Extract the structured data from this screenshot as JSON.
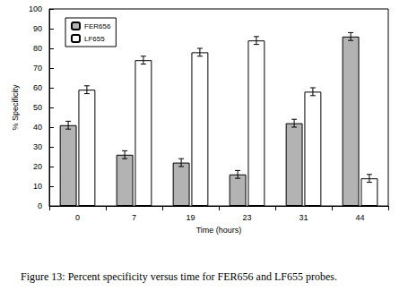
{
  "chart_data": {
    "type": "bar",
    "title": "Figure 13: Percent specificity versus time for FER656 and LF655 probes.",
    "x_label": "Time (hours)",
    "y_label": "% Specificity",
    "categories": [
      "0",
      "7",
      "19",
      "23",
      "31",
      "44"
    ],
    "series": [
      {
        "name": "FER656",
        "color": "#b3b3b3",
        "values": [
          41,
          26,
          22,
          16,
          42,
          86
        ],
        "errors": [
          2,
          2,
          2,
          2,
          2,
          2
        ]
      },
      {
        "name": "LF655",
        "color": "#ffffff",
        "values": [
          59,
          74,
          78,
          84,
          58,
          14
        ],
        "errors": [
          2,
          2,
          2,
          2,
          2,
          2
        ]
      }
    ],
    "ylim": [
      0,
      100
    ],
    "yticks": [
      0,
      10,
      20,
      30,
      40,
      50,
      60,
      70,
      80,
      90,
      100
    ],
    "grid": false,
    "legend": "upper left"
  }
}
